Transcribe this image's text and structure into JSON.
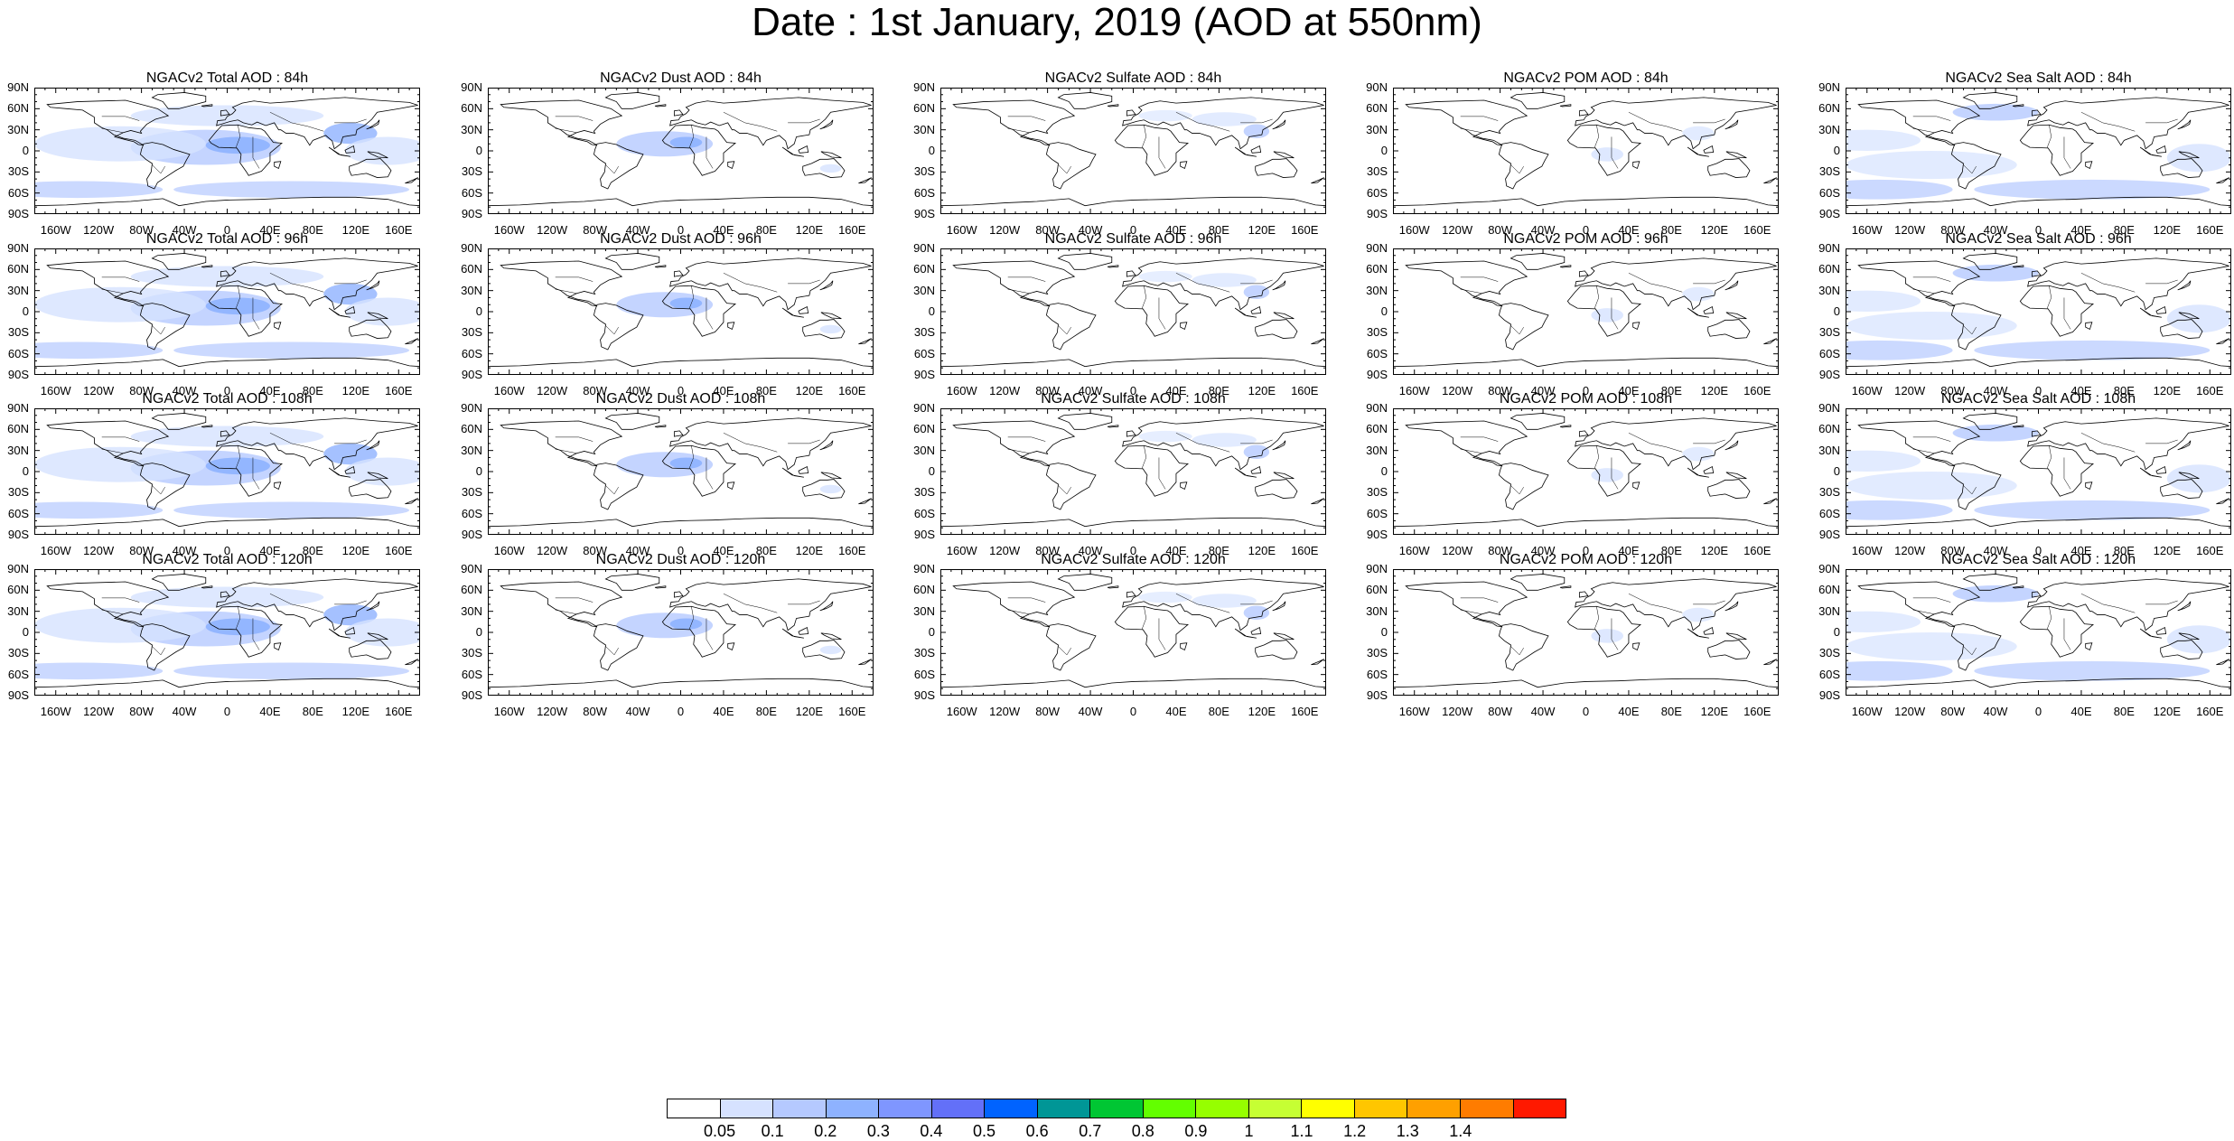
{
  "title": "Date : 1st January, 2019 (AOD at 550nm)",
  "lat_labels": [
    "90N",
    "60N",
    "30N",
    "0",
    "30S",
    "60S",
    "90S"
  ],
  "lon_labels": [
    "160W",
    "120W",
    "80W",
    "40W",
    "0",
    "40E",
    "80E",
    "120E",
    "160E"
  ],
  "panel_titles": [
    [
      "NGACv2 Total AOD : 84h",
      "NGACv2 Dust AOD : 84h",
      "NGACv2 Sulfate AOD : 84h",
      "NGACv2 POM AOD : 84h",
      "NGACv2 Sea Salt AOD : 84h"
    ],
    [
      "NGACv2 Total AOD : 96h",
      "NGACv2 Dust AOD : 96h",
      "NGACv2 Sulfate AOD : 96h",
      "NGACv2 POM AOD : 96h",
      "NGACv2 Sea Salt AOD : 96h"
    ],
    [
      "NGACv2 Total AOD : 108h",
      "NGACv2 Dust AOD : 108h",
      "NGACv2 Sulfate AOD : 108h",
      "NGACv2 POM AOD : 108h",
      "NGACv2 Sea Salt AOD : 108h"
    ],
    [
      "NGACv2 Total AOD : 120h",
      "NGACv2 Dust AOD : 120h",
      "NGACv2 Sulfate AOD : 120h",
      "NGACv2 POM AOD : 120h",
      "NGACv2 Sea Salt  AOD : 120h"
    ]
  ],
  "colorbar": {
    "labels": [
      "0.05",
      "0.1",
      "0.2",
      "0.3",
      "0.4",
      "0.5",
      "0.6",
      "0.7",
      "0.8",
      "0.9",
      "1",
      "1.1",
      "1.2",
      "1.3",
      "1.4"
    ],
    "colors": [
      "#ffffff",
      "#d6e2ff",
      "#b5c9ff",
      "#8eb2ff",
      "#7f96ff",
      "#6370f8",
      "#0063ff",
      "#009696",
      "#00c633",
      "#63ff00",
      "#96ff00",
      "#c6ff33",
      "#ffff00",
      "#ffc600",
      "#ffa000",
      "#ff7c00",
      "#ff1900"
    ]
  },
  "colors": {
    "land_outline": "#000000",
    "haze_light": "#d6e2ff",
    "haze_mid": "#b5c9ff",
    "haze_strong": "#8eb2ff"
  }
}
